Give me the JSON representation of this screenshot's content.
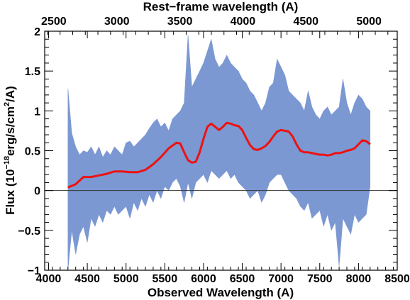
{
  "chart_data": {
    "type": "line",
    "title": "",
    "xlabel": "Observed Wavelength (A)",
    "x2label": "Rest−frame wavelength (A)",
    "ylabel": {
      "prefix": "Flux (10",
      "exp": "−18",
      "mid": "erg/s/cm",
      "exp2": "2",
      "suffix": "/A)"
    },
    "xlim": [
      3950,
      8500
    ],
    "ylim": [
      -1,
      2
    ],
    "x_ticks": [
      4000,
      4500,
      5000,
      5500,
      6000,
      6500,
      7000,
      7500,
      8000,
      8500
    ],
    "x_tick_labels": [
      "4000",
      "4500",
      "5000",
      "5500",
      "6000",
      "6500",
      "7000",
      "7500",
      "8000",
      "8500"
    ],
    "y_ticks": [
      -1,
      -0.5,
      0,
      0.5,
      1,
      1.5,
      2
    ],
    "y_tick_labels": [
      "−1",
      "−0.5",
      "0",
      "0.5",
      "1",
      "1.5",
      "2"
    ],
    "x2_ticks": [
      2500,
      3000,
      3500,
      4000,
      4500,
      5000
    ],
    "x2_tick_labels": [
      "2500",
      "3000",
      "3500",
      "4000",
      "4500",
      "5000"
    ],
    "x2_to_x_scale": 1.627,
    "zero_line": true,
    "grid": false,
    "series": [
      {
        "kind": "spectrum",
        "color": "#7b98d2",
        "x": [
          4250,
          4300,
          4350,
          4400,
          4450,
          4500,
          4550,
          4600,
          4650,
          4700,
          4750,
          4800,
          4850,
          4900,
          4950,
          5000,
          5050,
          5100,
          5150,
          5200,
          5250,
          5300,
          5350,
          5400,
          5450,
          5500,
          5550,
          5600,
          5650,
          5700,
          5750,
          5800,
          5850,
          5900,
          5950,
          6000,
          6050,
          6100,
          6150,
          6200,
          6250,
          6300,
          6350,
          6400,
          6450,
          6500,
          6550,
          6600,
          6650,
          6700,
          6750,
          6800,
          6850,
          6900,
          6950,
          7000,
          7050,
          7100,
          7150,
          7200,
          7250,
          7300,
          7350,
          7400,
          7450,
          7500,
          7550,
          7600,
          7650,
          7700,
          7750,
          7800,
          7850,
          7900,
          7950,
          8000,
          8050,
          8100,
          8150
        ],
        "ymax": [
          1.28,
          0.72,
          0.55,
          0.45,
          0.5,
          0.48,
          0.55,
          0.45,
          0.55,
          0.42,
          0.5,
          0.45,
          0.55,
          0.5,
          0.45,
          0.6,
          0.62,
          0.55,
          0.6,
          0.65,
          0.7,
          0.78,
          0.85,
          0.9,
          0.8,
          0.85,
          0.75,
          0.9,
          0.95,
          1.0,
          1.1,
          1.95,
          1.3,
          1.4,
          1.5,
          1.6,
          1.75,
          1.9,
          1.65,
          1.55,
          1.6,
          1.7,
          1.6,
          1.55,
          1.5,
          1.4,
          1.35,
          1.25,
          1.2,
          1.1,
          1.0,
          1.1,
          1.3,
          1.35,
          1.65,
          1.55,
          1.45,
          1.25,
          1.2,
          1.15,
          1.1,
          1.0,
          1.25,
          1.05,
          0.95,
          0.9,
          1.0,
          1.05,
          0.95,
          1.0,
          1.05,
          1.4,
          1.1,
          0.95,
          1.1,
          1.2,
          1.15,
          1.05,
          1.0
        ],
        "ymin": [
          -1.0,
          -0.5,
          -0.8,
          -0.55,
          -0.45,
          -0.65,
          -0.35,
          -0.45,
          -0.3,
          -0.4,
          -0.25,
          -0.3,
          -0.2,
          -0.3,
          -0.25,
          -0.2,
          -0.35,
          -0.15,
          -0.25,
          -0.1,
          -0.2,
          -0.05,
          -0.15,
          0.0,
          -0.1,
          0.05,
          0.0,
          0.1,
          0.15,
          0.05,
          -0.15,
          0.1,
          -0.1,
          0.1,
          0.15,
          0.2,
          0.1,
          0.25,
          0.2,
          0.15,
          0.2,
          0.25,
          0.15,
          0.2,
          0.1,
          0.05,
          0.0,
          -0.1,
          -0.05,
          0.0,
          -0.15,
          -0.05,
          0.1,
          0.15,
          0.2,
          0.2,
          0.1,
          0.0,
          -0.05,
          -0.1,
          -0.2,
          -0.25,
          -0.15,
          -0.35,
          -0.3,
          -0.25,
          -0.45,
          -0.3,
          -0.5,
          -0.4,
          -0.95,
          -0.35,
          -0.45,
          -0.55,
          -0.3,
          -0.4,
          -0.35,
          -0.3,
          0.05
        ]
      },
      {
        "kind": "model",
        "color": "#ee1111",
        "x": [
          4250,
          4350,
          4450,
          4550,
          4650,
          4750,
          4850,
          4950,
          5050,
          5150,
          5250,
          5350,
          5450,
          5550,
          5650,
          5700,
          5750,
          5800,
          5850,
          5900,
          5950,
          6000,
          6050,
          6100,
          6150,
          6200,
          6250,
          6300,
          6350,
          6400,
          6450,
          6500,
          6550,
          6600,
          6650,
          6700,
          6750,
          6800,
          6850,
          6900,
          6950,
          7000,
          7050,
          7100,
          7150,
          7200,
          7250,
          7300,
          7350,
          7400,
          7450,
          7500,
          7550,
          7600,
          7650,
          7700,
          7750,
          7800,
          7850,
          7900,
          7950,
          8000,
          8050,
          8100,
          8150
        ],
        "y": [
          0.04,
          0.08,
          0.17,
          0.17,
          0.19,
          0.21,
          0.24,
          0.24,
          0.23,
          0.23,
          0.26,
          0.33,
          0.42,
          0.53,
          0.6,
          0.59,
          0.48,
          0.38,
          0.35,
          0.36,
          0.48,
          0.65,
          0.8,
          0.84,
          0.8,
          0.76,
          0.8,
          0.85,
          0.84,
          0.82,
          0.81,
          0.76,
          0.66,
          0.57,
          0.52,
          0.51,
          0.53,
          0.56,
          0.61,
          0.68,
          0.74,
          0.76,
          0.75,
          0.74,
          0.68,
          0.58,
          0.5,
          0.48,
          0.48,
          0.47,
          0.46,
          0.45,
          0.45,
          0.44,
          0.45,
          0.47,
          0.47,
          0.48,
          0.5,
          0.51,
          0.53,
          0.58,
          0.63,
          0.62,
          0.58
        ]
      }
    ]
  }
}
